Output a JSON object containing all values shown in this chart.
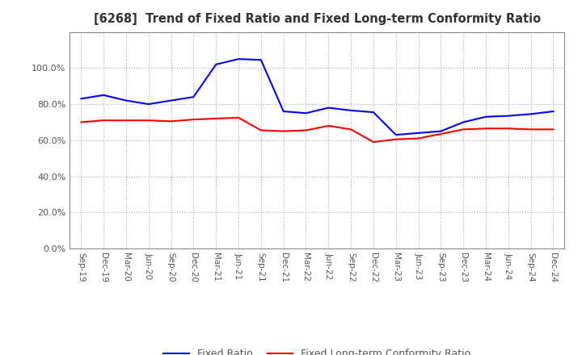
{
  "title": "[6268]  Trend of Fixed Ratio and Fixed Long-term Conformity Ratio",
  "x_labels": [
    "Sep-19",
    "Dec-19",
    "Mar-20",
    "Jun-20",
    "Sep-20",
    "Dec-20",
    "Mar-21",
    "Jun-21",
    "Sep-21",
    "Dec-21",
    "Mar-22",
    "Jun-22",
    "Sep-22",
    "Dec-22",
    "Mar-23",
    "Jun-23",
    "Sep-23",
    "Dec-23",
    "Mar-24",
    "Jun-24",
    "Sep-24",
    "Dec-24"
  ],
  "fixed_ratio": [
    83.0,
    85.0,
    82.0,
    80.0,
    82.0,
    84.0,
    102.0,
    105.0,
    104.5,
    76.0,
    75.0,
    78.0,
    76.5,
    75.5,
    63.0,
    64.0,
    65.0,
    70.0,
    73.0,
    73.5,
    74.5,
    76.0
  ],
  "fixed_lt_ratio": [
    70.0,
    71.0,
    71.0,
    71.0,
    70.5,
    71.5,
    72.0,
    72.5,
    65.5,
    65.0,
    65.5,
    68.0,
    66.0,
    59.0,
    60.5,
    61.0,
    63.5,
    66.0,
    66.5,
    66.5,
    66.0,
    66.0
  ],
  "fixed_ratio_color": "#0000ff",
  "fixed_lt_ratio_color": "#ff0000",
  "ylim": [
    0.0,
    120.0
  ],
  "yticks": [
    0.0,
    20.0,
    40.0,
    60.0,
    80.0,
    100.0
  ],
  "background_color": "#ffffff",
  "grid_color": "#aaaaaa",
  "legend_fixed": "Fixed Ratio",
  "legend_lt": "Fixed Long-term Conformity Ratio"
}
